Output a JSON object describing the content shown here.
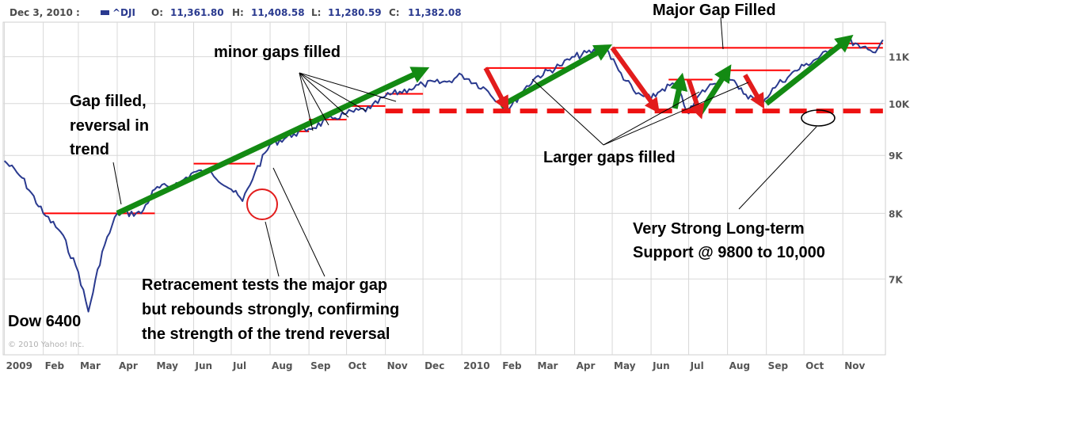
{
  "header": {
    "date": "Dec 3, 2010 :",
    "symbol": "^DJI",
    "open_label": "O:",
    "open": "11,361.80",
    "high_label": "H:",
    "high": "11,408.58",
    "low_label": "L:",
    "low": "11,280.59",
    "close_label": "C:",
    "close": "11,382.08"
  },
  "copyright": "© 2010 Yahoo! Inc.",
  "colors": {
    "price_line": "#2a3a8f",
    "gap_line": "#ff0000",
    "up_arrow": "#138a13",
    "down_arrow": "#e21c1c",
    "support_line": "#ee1111",
    "grid": "#d8d8d8",
    "axis_text": "#555555"
  },
  "annotations": {
    "major_gap": "Major Gap Filled",
    "minor_gaps": "minor  gaps filled",
    "gap_filled": [
      "Gap filled,",
      "reversal in",
      "trend"
    ],
    "larger_gaps": "Larger gaps filled",
    "support": [
      "Very Strong Long-term",
      "Support @ 9800 to 10,000"
    ],
    "retracement": [
      "Retracement tests the major gap",
      "but rebounds strongly, confirming",
      "the strength of the trend reversal"
    ],
    "dow_low": "Dow 6400"
  },
  "chart_data": {
    "type": "line",
    "title": "",
    "series": [
      {
        "name": "^DJI",
        "x": [
          "2009-01",
          "2009-01-15",
          "2009-02",
          "2009-02-15",
          "2009-03-01",
          "2009-03-09",
          "2009-03-20",
          "2009-04",
          "2009-04-20",
          "2009-05",
          "2009-05-20",
          "2009-06",
          "2009-06-15",
          "2009-07-01",
          "2009-07-10",
          "2009-07-20",
          "2009-08",
          "2009-08-20",
          "2009-09",
          "2009-09-20",
          "2009-10",
          "2009-10-20",
          "2009-11",
          "2009-11-20",
          "2009-12",
          "2009-12-20",
          "2010-01",
          "2010-01-20",
          "2010-02-01",
          "2010-02-08",
          "2010-02-20",
          "2010-03",
          "2010-03-20",
          "2010-04",
          "2010-04-26",
          "2010-05-06",
          "2010-05-20",
          "2010-06",
          "2010-06-10",
          "2010-06-20",
          "2010-07-01",
          "2010-07-10",
          "2010-07-20",
          "2010-08",
          "2010-08-10",
          "2010-08-27",
          "2010-09-10",
          "2010-09-20",
          "2010-10",
          "2010-10-20",
          "2010-11-05",
          "2010-11-15",
          "2010-11-25",
          "2010-12-03"
        ],
        "values": [
          8900,
          8600,
          8000,
          7700,
          7100,
          6550,
          7400,
          8000,
          8000,
          8400,
          8500,
          8700,
          8700,
          8400,
          8200,
          8700,
          9200,
          9400,
          9500,
          9700,
          9800,
          9900,
          10150,
          10300,
          10400,
          10450,
          10600,
          10300,
          10000,
          9900,
          10300,
          10550,
          10800,
          11000,
          11200,
          10700,
          10200,
          10100,
          10300,
          10400,
          9800,
          10200,
          10400,
          10600,
          10300,
          10000,
          10400,
          10600,
          10800,
          11100,
          11400,
          11200,
          11100,
          11382
        ]
      }
    ],
    "y_axis_labels": [
      "11K",
      "10K",
      "9K",
      "8K",
      "7K"
    ],
    "y_ticks": [
      11000,
      10000,
      9000,
      8000,
      7000
    ],
    "ylim": [
      6000,
      11800
    ],
    "y_scale": "log",
    "x_labels": [
      {
        "label": "2009",
        "date": "2009-01"
      },
      {
        "label": "Feb",
        "date": "2009-02"
      },
      {
        "label": "Mar",
        "date": "2009-03"
      },
      {
        "label": "Apr",
        "date": "2009-04"
      },
      {
        "label": "May",
        "date": "2009-05"
      },
      {
        "label": "Jun",
        "date": "2009-06"
      },
      {
        "label": "Jul",
        "date": "2009-07"
      },
      {
        "label": "Aug",
        "date": "2009-08"
      },
      {
        "label": "Sep",
        "date": "2009-09"
      },
      {
        "label": "Oct",
        "date": "2009-10"
      },
      {
        "label": "Nov",
        "date": "2009-11"
      },
      {
        "label": "Dec",
        "date": "2009-12"
      },
      {
        "label": "2010",
        "date": "2010-01"
      },
      {
        "label": "Feb",
        "date": "2010-02"
      },
      {
        "label": "Mar",
        "date": "2010-03"
      },
      {
        "label": "Apr",
        "date": "2010-04"
      },
      {
        "label": "May",
        "date": "2010-05"
      },
      {
        "label": "Jun",
        "date": "2010-06"
      },
      {
        "label": "Jul",
        "date": "2010-07"
      },
      {
        "label": "Aug",
        "date": "2010-08"
      },
      {
        "label": "Sep",
        "date": "2010-09"
      },
      {
        "label": "Oct",
        "date": "2010-10"
      },
      {
        "label": "Nov",
        "date": "2010-11"
      }
    ],
    "gap_levels": [
      {
        "value": 8000,
        "from": "2009-02",
        "to": "2009-05"
      },
      {
        "value": 8850,
        "from": "2009-06",
        "to": "2009-07-20"
      },
      {
        "value": 9450,
        "from": "2009-08-20",
        "to": "2009-09"
      },
      {
        "value": 9680,
        "from": "2009-09",
        "to": "2009-10"
      },
      {
        "value": 9950,
        "from": "2009-10",
        "to": "2009-11"
      },
      {
        "value": 10200,
        "from": "2009-11",
        "to": "2009-12"
      },
      {
        "value": 10750,
        "from": "2010-01-20",
        "to": "2010-04"
      },
      {
        "value": 11200,
        "from": "2010-05",
        "to": "2010-12-03"
      },
      {
        "value": 10500,
        "from": "2010-06-15",
        "to": "2010-07-20"
      },
      {
        "value": 10700,
        "from": "2010-08",
        "to": "2010-09-20"
      },
      {
        "value": 11300,
        "from": "2010-11",
        "to": "2010-12-03"
      }
    ],
    "support_level": {
      "value": 9850,
      "from": "2009-11",
      "to": "2010-12-03"
    },
    "trend_arrows_up": [
      {
        "from": [
          "2009-04",
          8000
        ],
        "to": [
          "2009-12",
          10700
        ]
      },
      {
        "from": [
          "2010-02",
          9950
        ],
        "to": [
          "2010-04-26",
          11200
        ]
      },
      {
        "from": [
          "2010-06-20",
          9900
        ],
        "to": [
          "2010-06-25",
          10500
        ]
      },
      {
        "from": [
          "2010-07-10",
          9800
        ],
        "to": [
          "2010-08-01",
          10700
        ]
      },
      {
        "from": [
          "2010-09",
          10000
        ],
        "to": [
          "2010-11-05",
          11400
        ]
      }
    ],
    "trend_arrows_down": [
      {
        "from": [
          "2010-01-20",
          10750
        ],
        "to": [
          "2010-02-05",
          9950
        ]
      },
      {
        "from": [
          "2010-05",
          11200
        ],
        "to": [
          "2010-06-05",
          9900
        ]
      },
      {
        "from": [
          "2010-07-01",
          10500
        ],
        "to": [
          "2010-07-10",
          9800
        ]
      },
      {
        "from": [
          "2010-08-15",
          10600
        ],
        "to": [
          "2010-08-28",
          10000
        ]
      }
    ]
  }
}
